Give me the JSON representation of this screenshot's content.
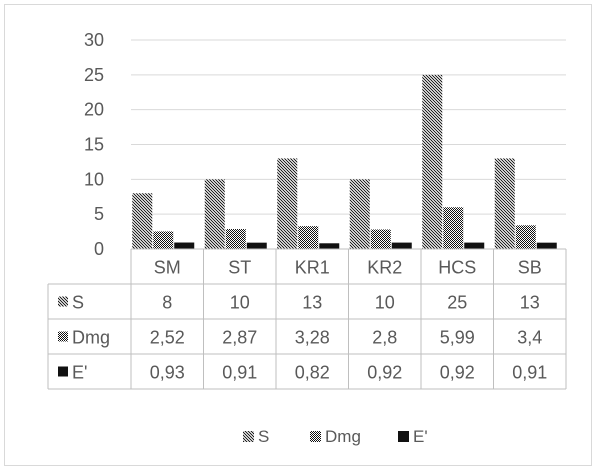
{
  "chart_data": {
    "type": "bar",
    "categories": [
      "SM",
      "ST",
      "KR1",
      "KR2",
      "HCS",
      "SB"
    ],
    "series": [
      {
        "name": "S",
        "values": [
          8,
          10,
          13,
          10,
          25,
          13
        ],
        "display": [
          "8",
          "10",
          "13",
          "10",
          "25",
          "13"
        ],
        "pattern": "diagonal-hatch"
      },
      {
        "name": "Dmg",
        "values": [
          2.52,
          2.87,
          3.28,
          2.8,
          5.99,
          3.4
        ],
        "display": [
          "2,52",
          "2,87",
          "3,28",
          "2,8",
          "5,99",
          "3,4"
        ],
        "pattern": "checker"
      },
      {
        "name": "E'",
        "values": [
          0.93,
          0.91,
          0.82,
          0.92,
          0.92,
          0.91
        ],
        "display": [
          "0,93",
          "0,91",
          "0,82",
          "0,92",
          "0,92",
          "0,91"
        ],
        "pattern": "solid-dark"
      }
    ],
    "yticks": [
      "0",
      "5",
      "10",
      "15",
      "20",
      "25",
      "30"
    ],
    "ylim": [
      0,
      30
    ],
    "grid": true,
    "data_table": true,
    "legend_position": "bottom",
    "colors": {
      "text": "#595959",
      "grid": "#d9d9d9",
      "bar": "#000000",
      "table_border": "#bfbfbf"
    }
  }
}
